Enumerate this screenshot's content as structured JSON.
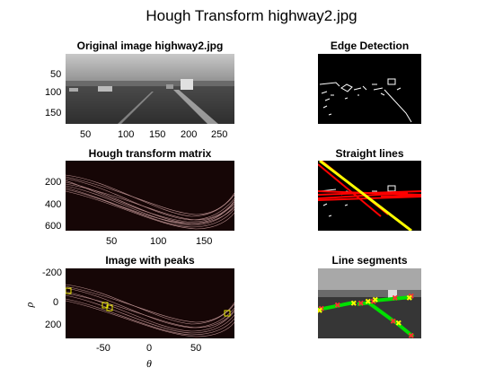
{
  "figure_title": "Hough Transform highway2.jpg",
  "panels": {
    "original": {
      "title": "Original image highway2.jpg",
      "x_ticks": [
        "50",
        "100",
        "150",
        "200",
        "250"
      ],
      "y_ticks": [
        "50",
        "100",
        "150"
      ]
    },
    "edge": {
      "title": "Edge Detection"
    },
    "hough": {
      "title": "Hough transform matrix",
      "x_ticks": [
        "50",
        "100",
        "150"
      ],
      "y_ticks": [
        "200",
        "400",
        "600"
      ]
    },
    "lines": {
      "title": "Straight lines"
    },
    "peaks": {
      "title": "Image with peaks",
      "x_ticks": [
        "-50",
        "0",
        "50"
      ],
      "y_ticks": [
        "-200",
        "0",
        "200"
      ],
      "xlabel": "θ",
      "ylabel": "ρ"
    },
    "segments": {
      "title": "Line segments"
    }
  },
  "colors": {
    "peak_box": "#e8e800",
    "line_red": "#ff0000",
    "line_yellow": "#ffff00",
    "segment_green": "#00e000",
    "hough_curve": "#d8a8a8"
  }
}
